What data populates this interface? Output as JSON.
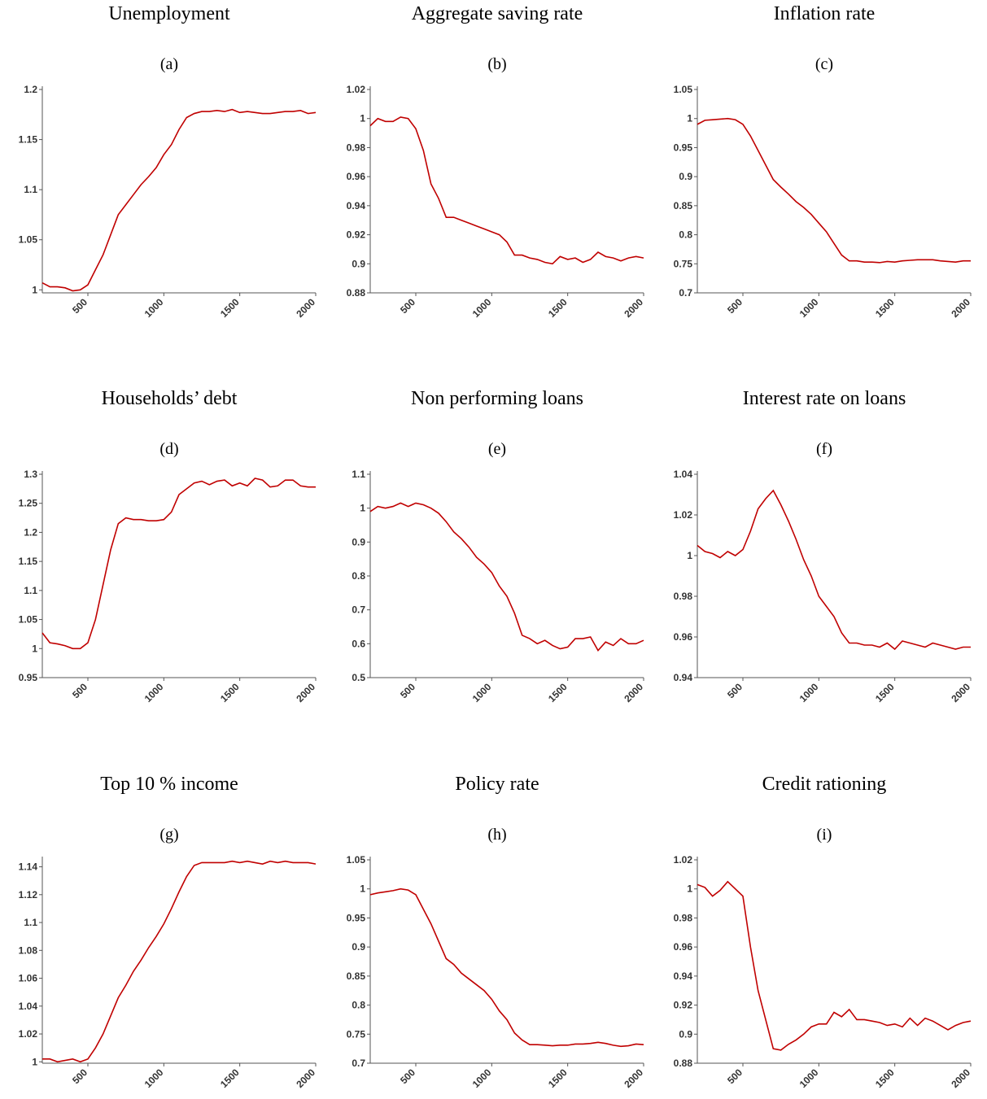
{
  "chart_data": [
    {
      "type": "line",
      "title": "Unemployment",
      "subtitle": "(a)",
      "color": "#c00000",
      "x": [
        200,
        250,
        300,
        350,
        400,
        450,
        500,
        550,
        600,
        650,
        700,
        750,
        800,
        850,
        900,
        950,
        1000,
        1050,
        1100,
        1150,
        1200,
        1250,
        1300,
        1350,
        1400,
        1450,
        1500,
        1550,
        1600,
        1650,
        1700,
        1750,
        1800,
        1850,
        1900,
        1950,
        2000
      ],
      "values": [
        1.007,
        1.003,
        1.003,
        1.002,
        0.999,
        1.0,
        1.005,
        1.02,
        1.035,
        1.055,
        1.075,
        1.085,
        1.095,
        1.105,
        1.113,
        1.122,
        1.135,
        1.145,
        1.16,
        1.172,
        1.176,
        1.178,
        1.178,
        1.179,
        1.178,
        1.18,
        1.177,
        1.178,
        1.177,
        1.176,
        1.176,
        1.177,
        1.178,
        1.178,
        1.179,
        1.176,
        1.177
      ],
      "xlim": [
        200,
        2000
      ],
      "xticks": [
        500,
        1000,
        1500,
        2000
      ],
      "ylim": [
        0.997,
        1.2
      ],
      "yticks": [
        1,
        1.05,
        1.1,
        1.15,
        1.2
      ]
    },
    {
      "type": "line",
      "title": "Aggregate saving rate",
      "subtitle": "(b)",
      "color": "#c00000",
      "x": [
        200,
        250,
        300,
        350,
        400,
        450,
        500,
        550,
        600,
        650,
        700,
        750,
        800,
        850,
        900,
        950,
        1000,
        1050,
        1100,
        1150,
        1200,
        1250,
        1300,
        1350,
        1400,
        1450,
        1500,
        1550,
        1600,
        1650,
        1700,
        1750,
        1800,
        1850,
        1900,
        1950,
        2000
      ],
      "values": [
        0.995,
        1.0,
        0.998,
        0.998,
        1.001,
        1.0,
        0.993,
        0.978,
        0.955,
        0.945,
        0.932,
        0.932,
        0.93,
        0.928,
        0.926,
        0.924,
        0.922,
        0.92,
        0.915,
        0.906,
        0.906,
        0.904,
        0.903,
        0.901,
        0.9,
        0.905,
        0.903,
        0.904,
        0.901,
        0.903,
        0.908,
        0.905,
        0.904,
        0.902,
        0.904,
        0.905,
        0.904
      ],
      "xlim": [
        200,
        2000
      ],
      "xticks": [
        500,
        1000,
        1500,
        2000
      ],
      "ylim": [
        0.88,
        1.02
      ],
      "yticks": [
        0.88,
        0.9,
        0.92,
        0.94,
        0.96,
        0.98,
        1,
        1.02
      ]
    },
    {
      "type": "line",
      "title": "Inflation rate",
      "subtitle": "(c)",
      "color": "#c00000",
      "x": [
        200,
        250,
        300,
        350,
        400,
        450,
        500,
        550,
        600,
        650,
        700,
        750,
        800,
        850,
        900,
        950,
        1000,
        1050,
        1100,
        1150,
        1200,
        1250,
        1300,
        1350,
        1400,
        1450,
        1500,
        1550,
        1600,
        1650,
        1700,
        1750,
        1800,
        1850,
        1900,
        1950,
        2000
      ],
      "values": [
        0.99,
        0.997,
        0.998,
        0.999,
        1.0,
        0.998,
        0.99,
        0.97,
        0.945,
        0.92,
        0.895,
        0.882,
        0.87,
        0.857,
        0.847,
        0.835,
        0.82,
        0.805,
        0.785,
        0.765,
        0.755,
        0.755,
        0.753,
        0.753,
        0.752,
        0.754,
        0.753,
        0.755,
        0.756,
        0.757,
        0.757,
        0.757,
        0.755,
        0.754,
        0.753,
        0.755,
        0.755
      ],
      "xlim": [
        200,
        2000
      ],
      "xticks": [
        500,
        1000,
        1500,
        2000
      ],
      "ylim": [
        0.7,
        1.05
      ],
      "yticks": [
        0.7,
        0.75,
        0.8,
        0.85,
        0.9,
        0.95,
        1,
        1.05
      ]
    },
    {
      "type": "line",
      "title": "Households’ debt",
      "subtitle": "(d)",
      "color": "#c00000",
      "x": [
        200,
        250,
        300,
        350,
        400,
        450,
        500,
        550,
        600,
        650,
        700,
        750,
        800,
        850,
        900,
        950,
        1000,
        1050,
        1100,
        1150,
        1200,
        1250,
        1300,
        1350,
        1400,
        1450,
        1500,
        1550,
        1600,
        1650,
        1700,
        1750,
        1800,
        1850,
        1900,
        1950,
        2000
      ],
      "values": [
        1.027,
        1.01,
        1.008,
        1.005,
        1.0,
        1.0,
        1.01,
        1.05,
        1.11,
        1.17,
        1.215,
        1.225,
        1.222,
        1.222,
        1.22,
        1.22,
        1.222,
        1.235,
        1.265,
        1.275,
        1.285,
        1.288,
        1.282,
        1.288,
        1.29,
        1.28,
        1.285,
        1.28,
        1.293,
        1.29,
        1.278,
        1.28,
        1.29,
        1.29,
        1.28,
        1.278,
        1.278
      ],
      "xlim": [
        200,
        2000
      ],
      "xticks": [
        500,
        1000,
        1500,
        2000
      ],
      "ylim": [
        0.95,
        1.3
      ],
      "yticks": [
        0.95,
        1,
        1.05,
        1.1,
        1.15,
        1.2,
        1.25,
        1.3
      ]
    },
    {
      "type": "line",
      "title": "Non performing loans",
      "subtitle": "(e)",
      "color": "#c00000",
      "x": [
        200,
        250,
        300,
        350,
        400,
        450,
        500,
        550,
        600,
        650,
        700,
        750,
        800,
        850,
        900,
        950,
        1000,
        1050,
        1100,
        1150,
        1200,
        1250,
        1300,
        1350,
        1400,
        1450,
        1500,
        1550,
        1600,
        1650,
        1700,
        1750,
        1800,
        1850,
        1900,
        1950,
        2000
      ],
      "values": [
        0.99,
        1.005,
        1.0,
        1.005,
        1.015,
        1.005,
        1.015,
        1.01,
        1.0,
        0.985,
        0.96,
        0.93,
        0.91,
        0.885,
        0.855,
        0.835,
        0.81,
        0.77,
        0.74,
        0.69,
        0.625,
        0.615,
        0.6,
        0.61,
        0.595,
        0.585,
        0.59,
        0.615,
        0.615,
        0.62,
        0.58,
        0.605,
        0.595,
        0.615,
        0.6,
        0.6,
        0.61
      ],
      "xlim": [
        200,
        2000
      ],
      "xticks": [
        500,
        1000,
        1500,
        2000
      ],
      "ylim": [
        0.5,
        1.1
      ],
      "yticks": [
        0.5,
        0.6,
        0.7,
        0.8,
        0.9,
        1,
        1.1
      ]
    },
    {
      "type": "line",
      "title": "Interest rate on loans",
      "subtitle": "(f)",
      "color": "#c00000",
      "x": [
        200,
        250,
        300,
        350,
        400,
        450,
        500,
        550,
        600,
        650,
        700,
        750,
        800,
        850,
        900,
        950,
        1000,
        1050,
        1100,
        1150,
        1200,
        1250,
        1300,
        1350,
        1400,
        1450,
        1500,
        1550,
        1600,
        1650,
        1700,
        1750,
        1800,
        1850,
        1900,
        1950,
        2000
      ],
      "values": [
        1.005,
        1.002,
        1.001,
        0.999,
        1.002,
        1.0,
        1.003,
        1.012,
        1.023,
        1.028,
        1.032,
        1.025,
        1.017,
        1.008,
        0.998,
        0.99,
        0.98,
        0.975,
        0.97,
        0.962,
        0.957,
        0.957,
        0.956,
        0.956,
        0.955,
        0.957,
        0.954,
        0.958,
        0.957,
        0.956,
        0.955,
        0.957,
        0.956,
        0.955,
        0.954,
        0.955,
        0.955
      ],
      "xlim": [
        200,
        2000
      ],
      "xticks": [
        500,
        1000,
        1500,
        2000
      ],
      "ylim": [
        0.94,
        1.04
      ],
      "yticks": [
        0.94,
        0.96,
        0.98,
        1,
        1.02,
        1.04
      ]
    },
    {
      "type": "line",
      "title": "Top 10 % income",
      "subtitle": "(g)",
      "color": "#c00000",
      "x": [
        200,
        250,
        300,
        350,
        400,
        450,
        500,
        550,
        600,
        650,
        700,
        750,
        800,
        850,
        900,
        950,
        1000,
        1050,
        1100,
        1150,
        1200,
        1250,
        1300,
        1350,
        1400,
        1450,
        1500,
        1550,
        1600,
        1650,
        1700,
        1750,
        1800,
        1850,
        1900,
        1950,
        2000
      ],
      "values": [
        1.002,
        1.002,
        1.0,
        1.001,
        1.002,
        1.0,
        1.002,
        1.01,
        1.02,
        1.033,
        1.046,
        1.055,
        1.065,
        1.073,
        1.082,
        1.09,
        1.099,
        1.11,
        1.122,
        1.133,
        1.141,
        1.143,
        1.143,
        1.143,
        1.143,
        1.144,
        1.143,
        1.144,
        1.143,
        1.142,
        1.144,
        1.143,
        1.144,
        1.143,
        1.143,
        1.143,
        1.142
      ],
      "xlim": [
        200,
        2000
      ],
      "xticks": [
        500,
        1000,
        1500,
        2000
      ],
      "ylim": [
        0.999,
        1.145
      ],
      "yticks": [
        1,
        1.02,
        1.04,
        1.06,
        1.08,
        1.1,
        1.12,
        1.14
      ]
    },
    {
      "type": "line",
      "title": "Policy rate",
      "subtitle": "(h)",
      "color": "#c00000",
      "x": [
        200,
        250,
        300,
        350,
        400,
        450,
        500,
        550,
        600,
        650,
        700,
        750,
        800,
        850,
        900,
        950,
        1000,
        1050,
        1100,
        1150,
        1200,
        1250,
        1300,
        1350,
        1400,
        1450,
        1500,
        1550,
        1600,
        1650,
        1700,
        1750,
        1800,
        1850,
        1900,
        1950,
        2000
      ],
      "values": [
        0.99,
        0.993,
        0.995,
        0.997,
        1.0,
        0.998,
        0.99,
        0.965,
        0.94,
        0.91,
        0.88,
        0.87,
        0.855,
        0.845,
        0.835,
        0.825,
        0.81,
        0.79,
        0.775,
        0.752,
        0.74,
        0.732,
        0.732,
        0.731,
        0.73,
        0.731,
        0.731,
        0.733,
        0.733,
        0.734,
        0.736,
        0.734,
        0.731,
        0.729,
        0.73,
        0.733,
        0.732
      ],
      "xlim": [
        200,
        2000
      ],
      "xticks": [
        500,
        1000,
        1500,
        2000
      ],
      "ylim": [
        0.7,
        1.05
      ],
      "yticks": [
        0.7,
        0.75,
        0.8,
        0.85,
        0.9,
        0.95,
        1,
        1.05
      ]
    },
    {
      "type": "line",
      "title": "Credit rationing",
      "subtitle": "(i)",
      "color": "#c00000",
      "x": [
        200,
        250,
        300,
        350,
        400,
        450,
        500,
        550,
        600,
        650,
        700,
        750,
        800,
        850,
        900,
        950,
        1000,
        1050,
        1100,
        1150,
        1200,
        1250,
        1300,
        1350,
        1400,
        1450,
        1500,
        1550,
        1600,
        1650,
        1700,
        1750,
        1800,
        1850,
        1900,
        1950,
        2000
      ],
      "values": [
        1.003,
        1.001,
        0.995,
        0.999,
        1.005,
        1.0,
        0.995,
        0.96,
        0.93,
        0.91,
        0.89,
        0.889,
        0.893,
        0.896,
        0.9,
        0.905,
        0.907,
        0.907,
        0.915,
        0.912,
        0.917,
        0.91,
        0.91,
        0.909,
        0.908,
        0.906,
        0.907,
        0.905,
        0.911,
        0.906,
        0.911,
        0.909,
        0.906,
        0.903,
        0.906,
        0.908,
        0.909
      ],
      "xlim": [
        200,
        2000
      ],
      "xticks": [
        500,
        1000,
        1500,
        2000
      ],
      "ylim": [
        0.88,
        1.02
      ],
      "yticks": [
        0.88,
        0.9,
        0.92,
        0.94,
        0.96,
        0.98,
        1,
        1.02
      ]
    }
  ]
}
